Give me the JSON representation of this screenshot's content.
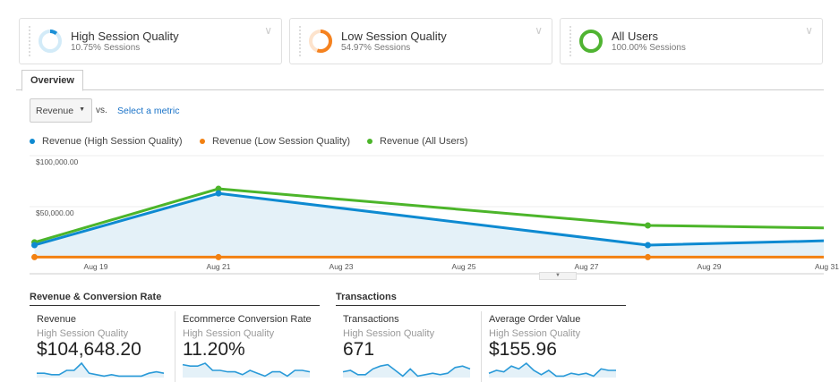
{
  "segments": [
    {
      "title": "High Session Quality",
      "subtitle": "10.75% Sessions",
      "color": "#1a8fd6",
      "pct": 10.75
    },
    {
      "title": "Low Session Quality",
      "subtitle": "54.97% Sessions",
      "color": "#f5821f",
      "pct": 54.97
    },
    {
      "title": "All Users",
      "subtitle": "100.00% Sessions",
      "color": "#50b432",
      "pct": 100
    }
  ],
  "tabs": {
    "overview": "Overview"
  },
  "controls": {
    "metric": "Revenue",
    "vs": "vs.",
    "select_metric": "Select a metric"
  },
  "chart_data": {
    "type": "line",
    "x": [
      "Aug 18",
      "Aug 21",
      "Aug 28",
      "Aug 31"
    ],
    "xticks": [
      "Aug 19",
      "Aug 21",
      "Aug 23",
      "Aug 25",
      "Aug 27",
      "Aug 29",
      "Aug 31"
    ],
    "yticks": [
      "$50,000.00",
      "$100,000.00"
    ],
    "ylim": [
      0,
      100000
    ],
    "series": [
      {
        "name": "Revenue (High Session Quality)",
        "color": "#0e8ad1",
        "values": [
          12300,
          63000,
          12300,
          16700
        ],
        "fill": true
      },
      {
        "name": "Revenue (Low Session Quality)",
        "color": "#f28112",
        "values": [
          500,
          500,
          500,
          500
        ]
      },
      {
        "name": "Revenue (All Users)",
        "color": "#4cb52a",
        "values": [
          15000,
          67500,
          31600,
          29000
        ]
      }
    ]
  },
  "sections": {
    "revenue": "Revenue & Conversion Rate",
    "transactions": "Transactions"
  },
  "cards": [
    {
      "name": "Revenue",
      "segment": "High Session Quality",
      "value": "$104,648.20",
      "spark": [
        3,
        3,
        2,
        2,
        5,
        5,
        10,
        3,
        2,
        1,
        2,
        1,
        1,
        1,
        1,
        3,
        4,
        3
      ]
    },
    {
      "name": "Ecommerce Conversion Rate",
      "segment": "High Session Quality",
      "value": "11.20%",
      "spark": [
        9,
        8,
        8,
        10,
        5,
        5,
        4,
        4,
        2,
        5,
        3,
        1,
        4,
        4,
        1,
        5,
        5,
        4
      ]
    },
    {
      "name": "Transactions",
      "segment": "High Session Quality",
      "value": "671",
      "spark": [
        4,
        5,
        2,
        2,
        6,
        8,
        9,
        5,
        1,
        6,
        1,
        2,
        3,
        2,
        3,
        7,
        8,
        6
      ]
    },
    {
      "name": "Average Order Value",
      "segment": "High Session Quality",
      "value": "$155.96",
      "spark": [
        3,
        5,
        4,
        8,
        6,
        10,
        5,
        2,
        5,
        1,
        1,
        3,
        2,
        3,
        1,
        6,
        5,
        5
      ]
    }
  ]
}
